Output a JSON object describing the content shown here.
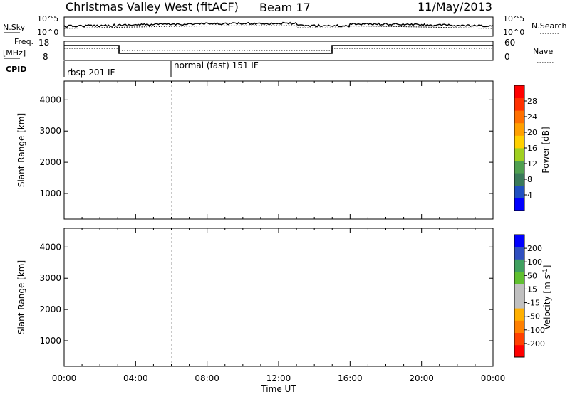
{
  "header": {
    "title": "Christmas Valley West (fitACF)",
    "beam": "Beam 17",
    "date": "11/May/2013"
  },
  "strip": {
    "nsky_label": "N.Sky",
    "nsky_top": "10^5",
    "nsky_bottom": "10^0",
    "nsearch_label": "N.Search",
    "freq_label_1": "Freq.",
    "freq_label_2": "[MHz]",
    "freq_top": "18",
    "freq_bottom": "8",
    "nave_label": "Nave",
    "nave_top": "60",
    "nave_bottom": "0",
    "cpid_label": "CPID",
    "cpid_1": "rbsp 201 IF",
    "cpid_2": "normal (fast) 151 IF"
  },
  "colors": {
    "power_scale": [
      "#0000ff",
      "#2050c0",
      "#3a7a5a",
      "#50a050",
      "#a0d020",
      "#ffd000",
      "#ffa000",
      "#ff7000",
      "#ff3000",
      "#ff0000"
    ],
    "velocity_scale": [
      "#ff0000",
      "#ff4000",
      "#ff8000",
      "#ffb000",
      "#c0c0c0",
      "#c0c0c0",
      "#60c030",
      "#40a060",
      "#3050c0",
      "#0000ff"
    ],
    "ground_scatter": "#c0c0c0"
  },
  "chart_data": [
    {
      "type": "heatmap",
      "name": "power-panel",
      "ylabel": "Slant Range [km]",
      "x_ticks": [
        "00:00",
        "04:00",
        "08:00",
        "12:00",
        "16:00",
        "20:00",
        "00:00"
      ],
      "y_ticks": [
        1000,
        2000,
        3000,
        4000
      ],
      "xlim_hours": [
        0,
        24
      ],
      "ylim_km": [
        180,
        4600
      ],
      "colorbar_label": "Power [dB]",
      "colorbar_ticks": [
        "4",
        "8",
        "12",
        "16",
        "20",
        "24",
        "28"
      ]
    },
    {
      "type": "heatmap",
      "name": "velocity-panel",
      "ylabel": "Slant Range [km]",
      "xlabel": "Time UT",
      "x_ticks": [
        "00:00",
        "04:00",
        "08:00",
        "12:00",
        "16:00",
        "20:00",
        "00:00"
      ],
      "y_ticks": [
        1000,
        2000,
        3000,
        4000
      ],
      "xlim_hours": [
        0,
        24
      ],
      "ylim_km": [
        180,
        4600
      ],
      "colorbar_label": "Velocity [m s^-1]",
      "colorbar_ticks": [
        "200",
        "100",
        "50",
        "15",
        "-15",
        "-50",
        "-100",
        "-200"
      ]
    }
  ]
}
